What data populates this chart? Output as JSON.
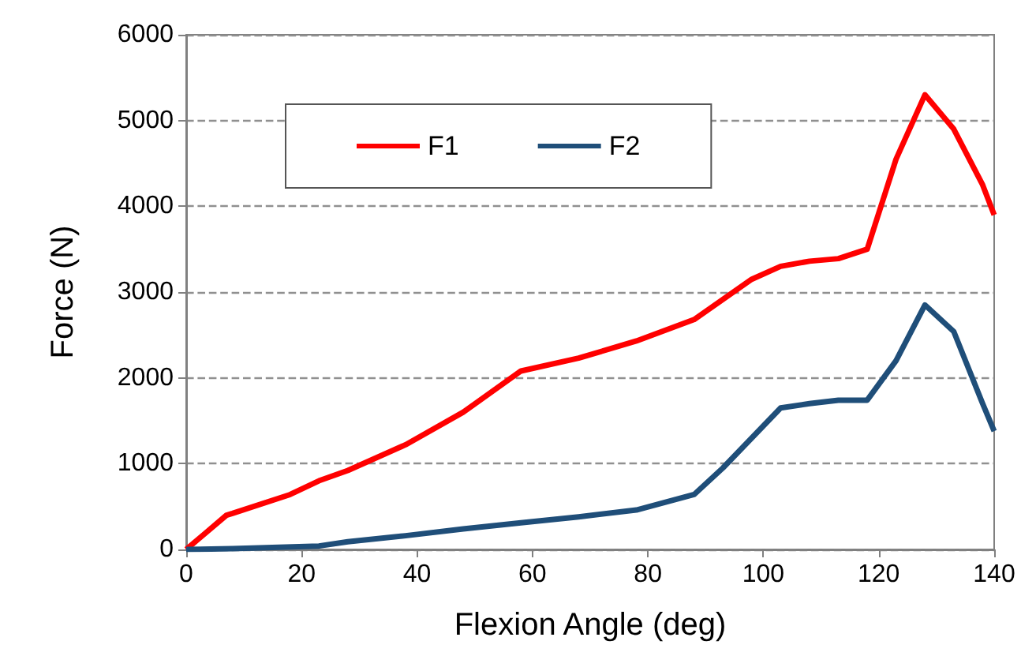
{
  "chart_data": {
    "type": "line",
    "xlabel": "Flexion Angle (deg)",
    "ylabel": "Force (N)",
    "xlim": [
      0,
      140
    ],
    "xticks": [
      0,
      20,
      40,
      60,
      80,
      100,
      120,
      140
    ],
    "ylim": [
      0,
      6000
    ],
    "yticks": [
      0,
      1000,
      2000,
      3000,
      4000,
      5000,
      6000
    ],
    "grid": "y",
    "legend": "top",
    "marker": "none",
    "line_style": "solid",
    "series": [
      {
        "name": "F1",
        "color": "#ff0000",
        "x": [
          0,
          7,
          8,
          18,
          23,
          28,
          38,
          48,
          58,
          68,
          78,
          88,
          98,
          103,
          108,
          113,
          118,
          123,
          128,
          133,
          138,
          140
        ],
        "values": [
          0,
          400,
          420,
          640,
          800,
          920,
          1220,
          1600,
          2080,
          2230,
          2430,
          2680,
          3150,
          3300,
          3360,
          3390,
          3500,
          4550,
          5300,
          4900,
          4250,
          3900
        ]
      },
      {
        "name": "F2",
        "color": "#1f4e79",
        "x": [
          0,
          8,
          23,
          28,
          38,
          48,
          58,
          68,
          78,
          88,
          93,
          98,
          103,
          108,
          113,
          118,
          123,
          128,
          133,
          138,
          140
        ],
        "values": [
          0,
          10,
          40,
          90,
          160,
          240,
          310,
          380,
          460,
          640,
          950,
          1300,
          1650,
          1700,
          1740,
          1740,
          2200,
          2850,
          2540,
          1700,
          1380
        ]
      }
    ]
  }
}
